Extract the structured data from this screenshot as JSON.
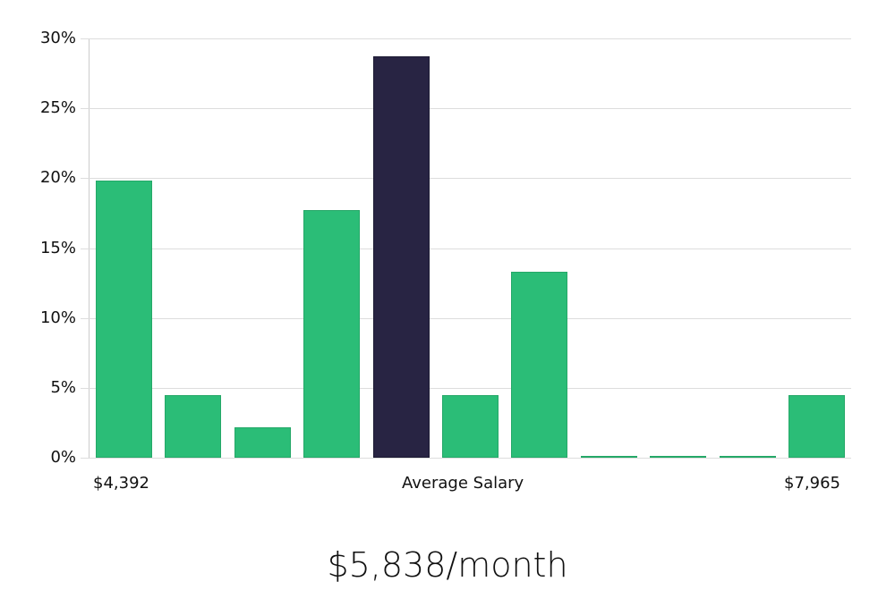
{
  "chart_data": {
    "type": "bar",
    "title": "",
    "xlabel": "Average Salary",
    "ylabel": "",
    "ylim": [
      0,
      30
    ],
    "y_ticks": [
      "0%",
      "5%",
      "10%",
      "15%",
      "20%",
      "25%",
      "30%"
    ],
    "x_tick_labels": {
      "left": "$4,392",
      "center": "Average Salary",
      "right": "$7,965"
    },
    "categories": [
      "bin1",
      "bin2",
      "bin3",
      "bin4",
      "bin5",
      "bin6",
      "bin7",
      "bin8",
      "bin9",
      "bin10",
      "bin11"
    ],
    "values": [
      19.8,
      4.5,
      2.2,
      17.7,
      28.7,
      4.5,
      13.3,
      0,
      0,
      0,
      4.5
    ],
    "highlighted_index": 4,
    "colors": {
      "bar": "#2bbd77",
      "highlight": "#282443",
      "grid": "#dddddd"
    },
    "grid": true,
    "legend": null
  },
  "axis": {
    "y_labels": [
      "0%",
      "5%",
      "10%",
      "15%",
      "20%",
      "25%",
      "30%"
    ],
    "x_left": "$4,392",
    "x_center": "Average Salary",
    "x_right": "$7,965"
  },
  "footer": {
    "average_salary": "$5,838/month"
  }
}
